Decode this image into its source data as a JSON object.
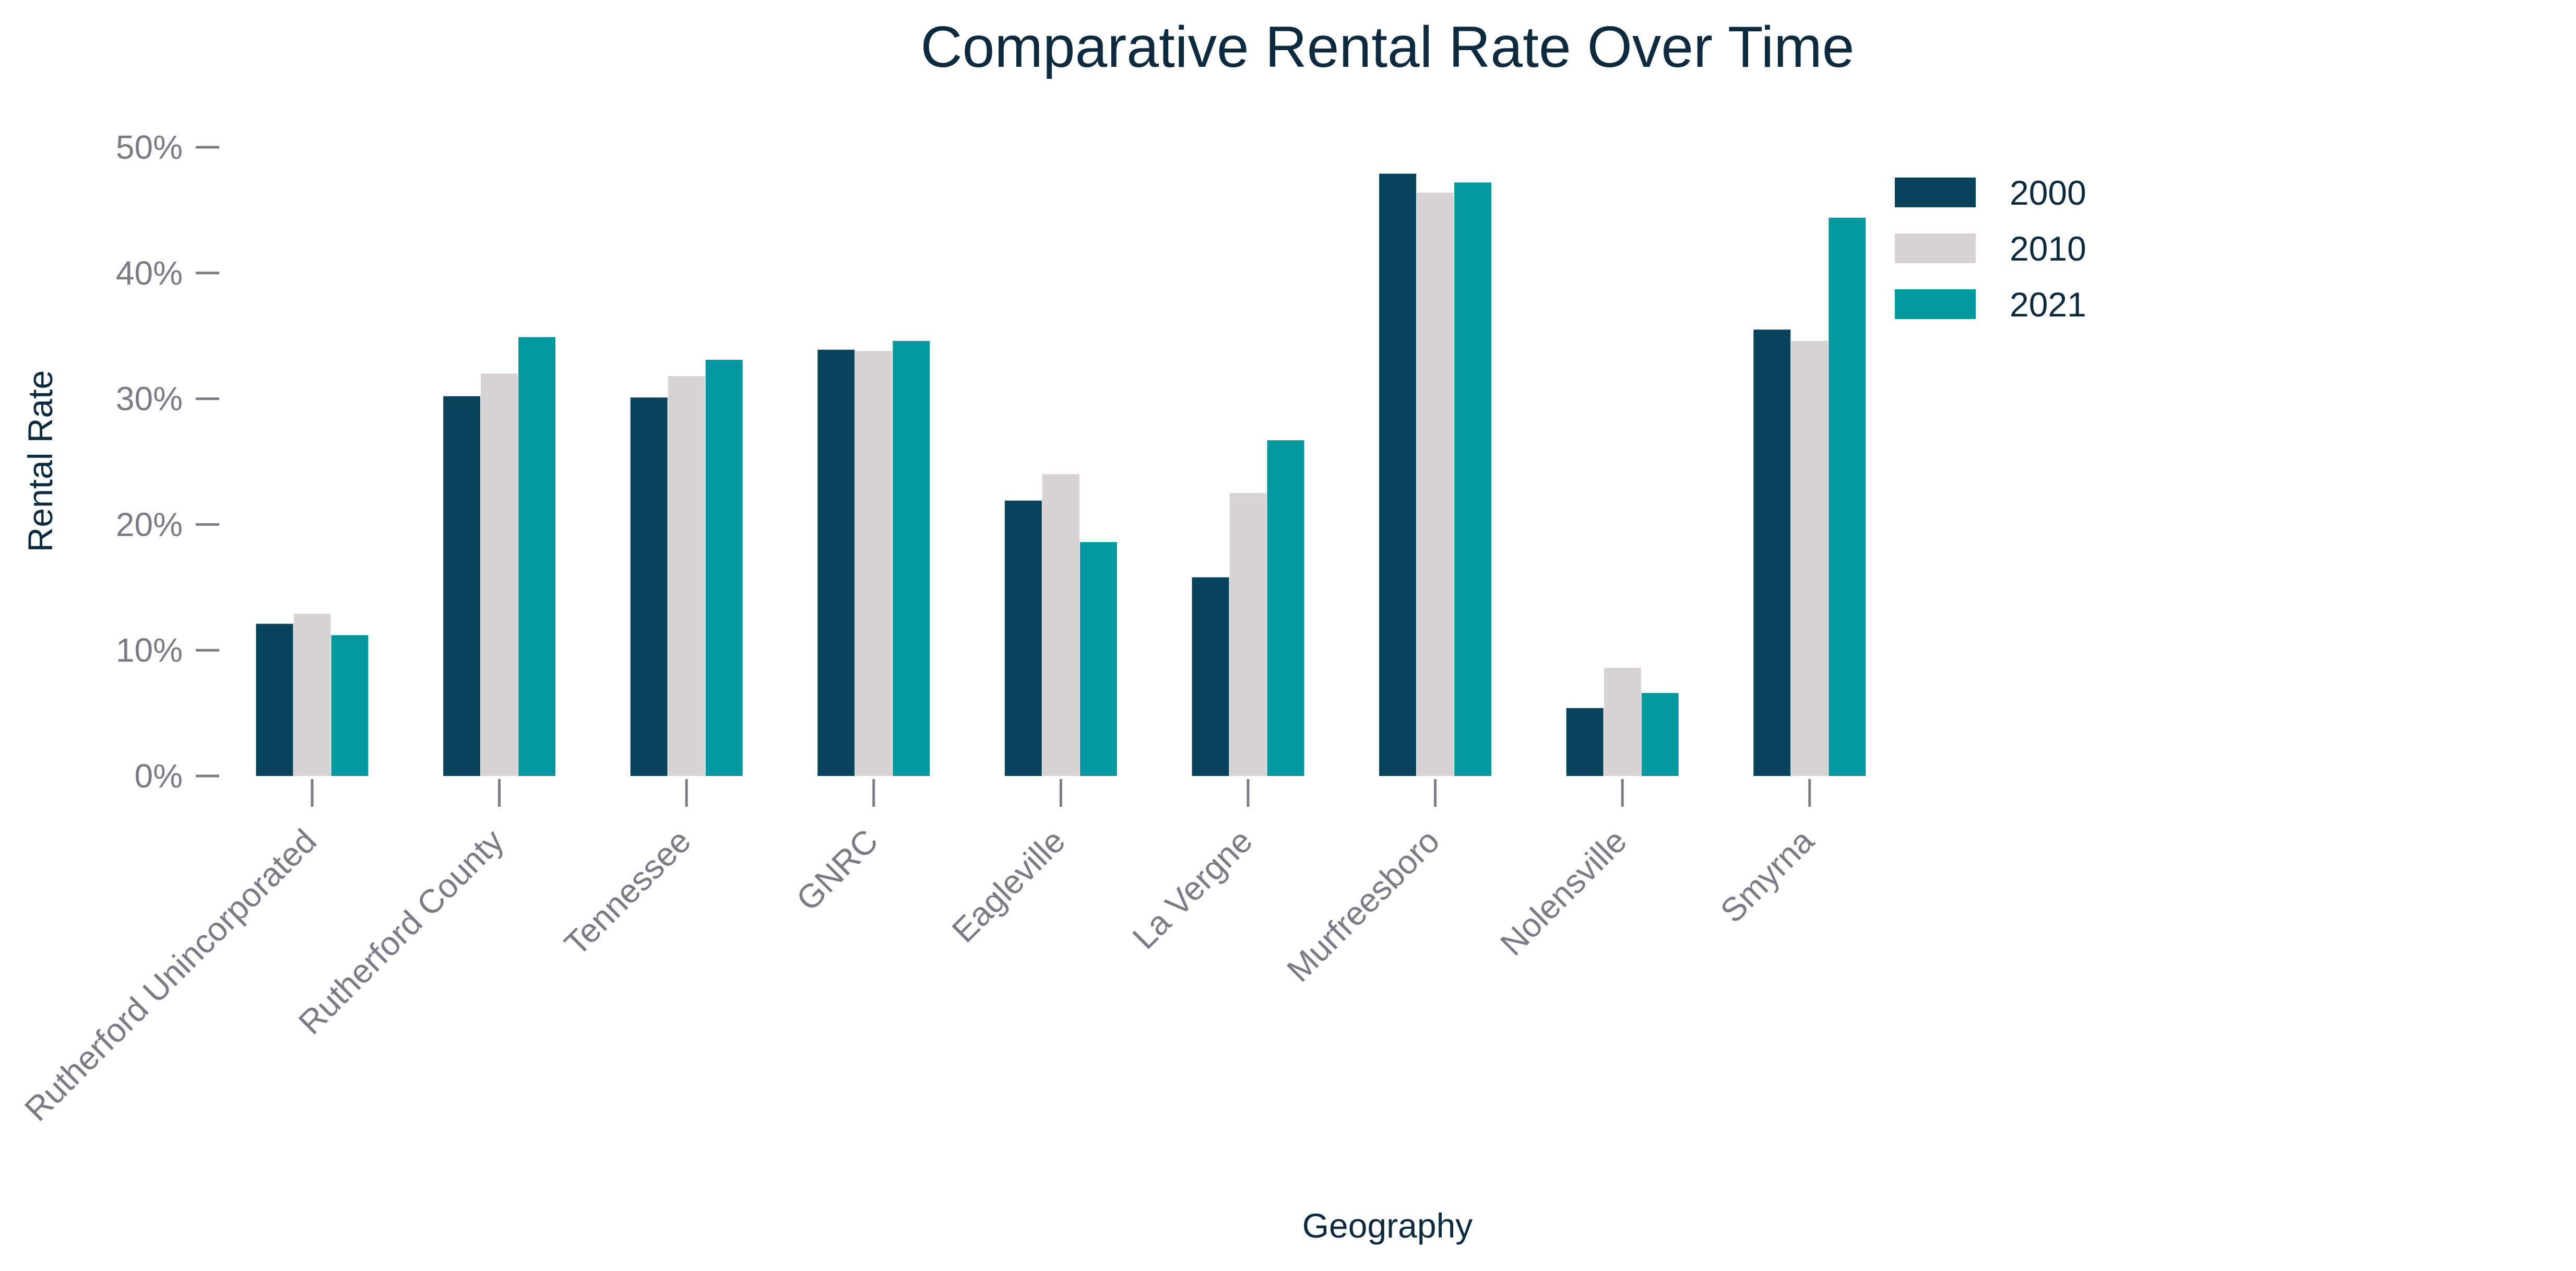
{
  "chart_data": {
    "type": "bar",
    "title": "Comparative Rental Rate Over Time",
    "xlabel": "Geography",
    "ylabel": "Rental Rate",
    "categories": [
      "Rutherford Unincorporated",
      "Rutherford County",
      "Tennessee",
      "GNRC",
      "Eagleville",
      "La Vergne",
      "Murfreesboro",
      "Nolensville",
      "Smyrna"
    ],
    "series": [
      {
        "name": "2000",
        "color": "#08435c",
        "values": [
          12.1,
          30.2,
          30.1,
          33.9,
          21.9,
          15.8,
          47.9,
          5.4,
          35.5
        ]
      },
      {
        "name": "2010",
        "color": "#d7d2d4",
        "values": [
          12.9,
          32.0,
          31.8,
          33.8,
          24.0,
          22.5,
          46.4,
          8.6,
          34.6
        ]
      },
      {
        "name": "2021",
        "color": "#05989e",
        "values": [
          11.2,
          34.9,
          33.1,
          34.6,
          18.6,
          26.7,
          47.2,
          6.6,
          44.4
        ]
      }
    ],
    "yticks": [
      "0%",
      "10%",
      "20%",
      "30%",
      "40%",
      "50%"
    ],
    "ylim": [
      0,
      50
    ],
    "grid": false,
    "legend_position": "top-right"
  }
}
